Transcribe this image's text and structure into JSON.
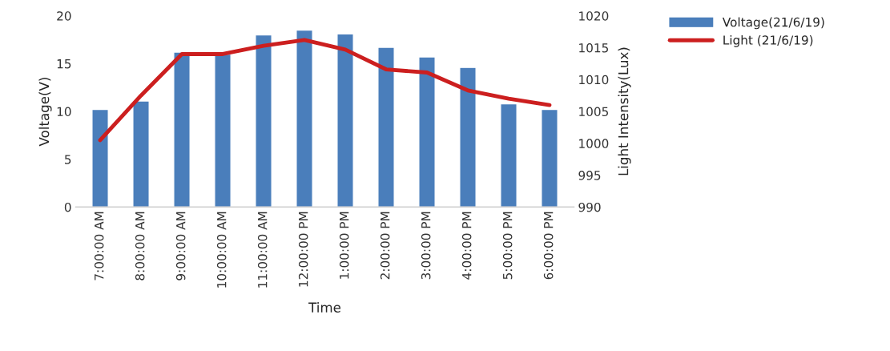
{
  "chart_data": {
    "type": "bar",
    "xlabel": "Time",
    "ylabel": "Voltage(V)",
    "y2label": "Light Intensity(Lux)",
    "categories": [
      "7:00:00 AM",
      "8:00:00 AM",
      "9:00:00 AM",
      "10:00:00 AM",
      "11:00:00 AM",
      "12:00:00 PM",
      "1:00:00 PM",
      "2:00:00 PM",
      "3:00:00 PM",
      "4:00:00 PM",
      "5:00:00 PM",
      "6:00:00 PM"
    ],
    "series": [
      {
        "name": "Voltage(21/6/19)",
        "color": "#4a7ebb",
        "values": [
          10.2,
          11.1,
          16.2,
          16.0,
          18.0,
          18.5,
          18.1,
          16.7,
          15.7,
          14.6,
          10.8,
          10.2
        ]
      },
      {
        "name": "Light (21/6/19)",
        "type": "line",
        "axis": "y2",
        "color": "#cc1f1f",
        "values": [
          1000.5,
          1007.5,
          1014,
          1014,
          1015.3,
          1016.2,
          1014.7,
          1011.6,
          1011.1,
          1008.3,
          1007,
          1006
        ]
      }
    ],
    "ylim": [
      0,
      20
    ],
    "yticks": [
      0,
      5,
      10,
      15,
      20
    ],
    "y2lim": [
      990,
      1020
    ],
    "y2ticks": [
      990,
      995,
      1000,
      1005,
      1010,
      1015,
      1020
    ],
    "grid": false,
    "legend": "top right",
    "marker": "none",
    "line_style": "solid"
  }
}
